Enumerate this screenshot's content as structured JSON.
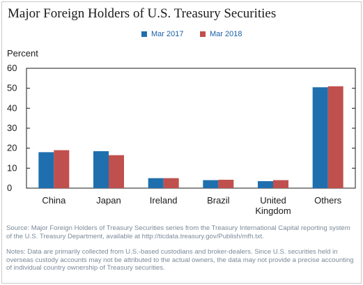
{
  "chart_data": {
    "type": "bar",
    "title": "Major Foreign Holders of U.S. Treasury Securities",
    "ylabel": "Percent",
    "categories": [
      "China",
      "Japan",
      "Ireland",
      "Brazil",
      [
        "United",
        "Kingdom"
      ],
      "Others"
    ],
    "series": [
      {
        "name": "Mar 2017",
        "color": "#1f6fae",
        "values": [
          18,
          18.5,
          5,
          4,
          3.5,
          50.5
        ]
      },
      {
        "name": "Mar 2018",
        "color": "#c0504d",
        "values": [
          19,
          16.5,
          5,
          4.2,
          4,
          51
        ]
      }
    ],
    "ylim": [
      0,
      60
    ],
    "yticks": [
      0,
      10,
      20,
      30,
      40,
      50,
      60
    ],
    "grid": false,
    "legend_position": "top-center"
  },
  "footer": {
    "source": "Source: Major Foreign Holders of Treasury Securities series from the Treasury International Capital reporting system of the U.S. Treasury Department, available at http://ticdata.treasury.gov/Publish/mfh.txt.",
    "notes": "Notes: Data are primarily collected from U.S.-based custodians and broker-dealers. Since U.S. securities held in overseas custody accounts may not be attributed to the actual owners, the data may not provide a precise accounting of individual country ownership of Treasury securities."
  }
}
